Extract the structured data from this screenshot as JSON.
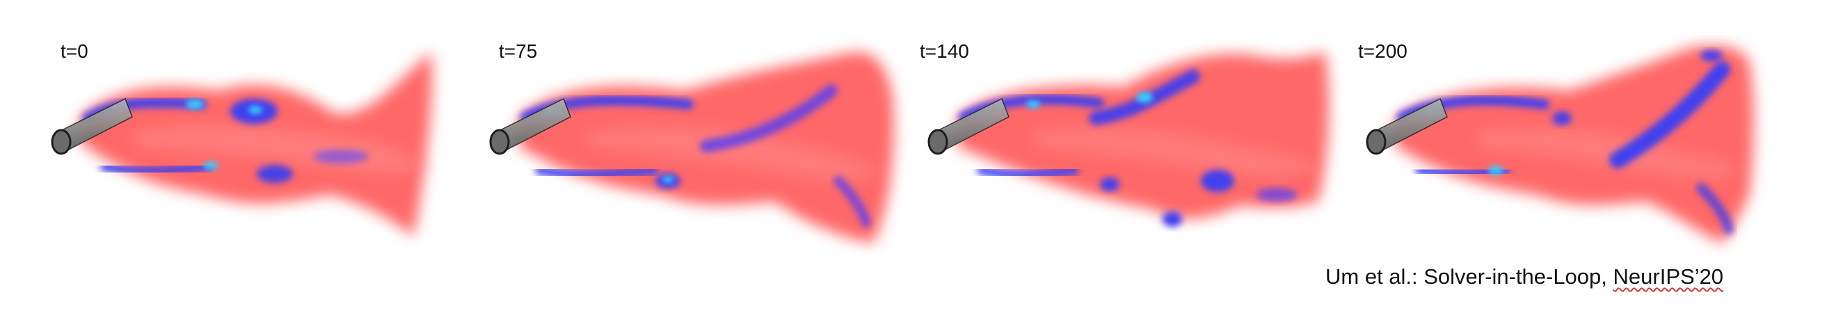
{
  "frames": [
    {
      "label": "t=0"
    },
    {
      "label": "t=75"
    },
    {
      "label": "t=140"
    },
    {
      "label": "t=200"
    }
  ],
  "caption": {
    "text": "Um et al.: Solver-in-the-Loop, ",
    "venue": "NeurIPS’20"
  },
  "colors": {
    "background": "#ffffff",
    "smoke": "#ff5b5b",
    "smoke_light": "#ff8a8a",
    "vortex": "#3f3ff0",
    "vortex_core": "#38c8ff",
    "cylinder": "#8c8c8c",
    "cylinder_edge": "#1e1e1e"
  }
}
